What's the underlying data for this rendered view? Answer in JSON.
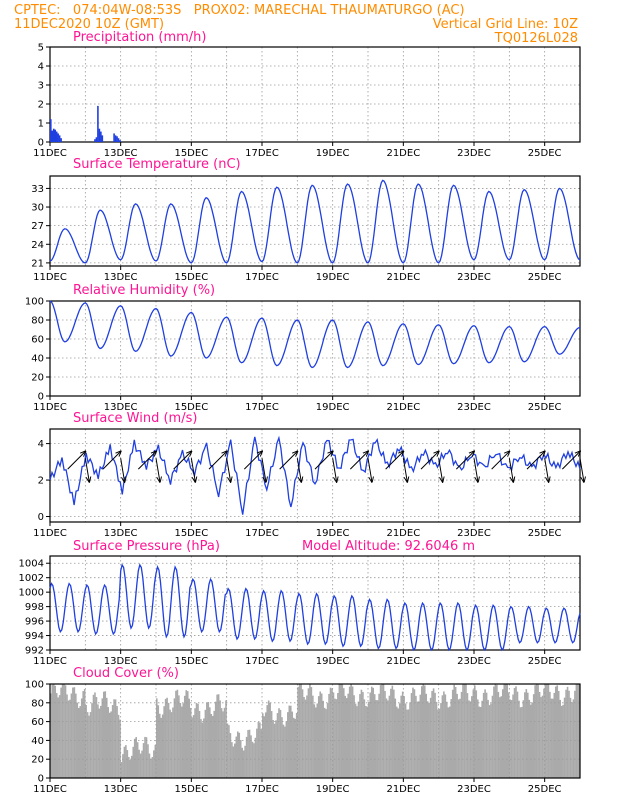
{
  "header": {
    "line1_left": "CPTEC:   074:04W-08:53S   PROX02: MARECHAL THAUMATURGO (AC)",
    "line2_left": "11DEC2020 10Z (GMT)",
    "line2_right": "Vertical Grid Line: 10Z",
    "line3_right": "TQ0126L028"
  },
  "colors": {
    "header": "#ff8c00",
    "panel_title": "#ff1493",
    "series": "#1f3fe0",
    "cloud": "#aaaaaa",
    "grid": "#9a9a9a"
  },
  "x_axis": {
    "ticks": [
      "11DEC",
      "13DEC",
      "15DEC",
      "17DEC",
      "19DEC",
      "21DEC",
      "23DEC",
      "25DEC"
    ],
    "start_label": "11DEC2020 10Z",
    "days_span": 15
  },
  "panels": [
    {
      "key": "precip",
      "title": "Precipitation (mm/h)"
    },
    {
      "key": "temp",
      "title": "Surface Temperature (nC)"
    },
    {
      "key": "rh",
      "title": "Relative Humidity (%)"
    },
    {
      "key": "wind",
      "title": "Surface Wind (m/s)"
    },
    {
      "key": "pres",
      "title": "Surface Pressure (hPa)",
      "extra": "Model Altitude: 92.6046 m"
    },
    {
      "key": "cloud",
      "title": "Cloud Cover (%)"
    }
  ],
  "chart_data": [
    {
      "type": "bar",
      "key": "precip",
      "title": "Precipitation (mm/h)",
      "ylim": [
        0,
        5
      ],
      "yticks": [
        0,
        1,
        2,
        3,
        4,
        5
      ],
      "x": [
        "2020-12-11T10Z",
        "2020-12-11T11Z",
        "2020-12-11T12Z",
        "2020-12-11T13Z",
        "2020-12-11T14Z",
        "2020-12-11T15Z",
        "2020-12-11T16Z",
        "2020-12-11T17Z",
        "2020-12-12T16Z",
        "2020-12-12T17Z",
        "2020-12-12T18Z",
        "2020-12-12T19Z",
        "2020-12-12T20Z",
        "2020-12-12T21Z",
        "2020-12-13T05Z",
        "2020-12-13T06Z",
        "2020-12-13T07Z",
        "2020-12-13T08Z",
        "2020-12-13T09Z"
      ],
      "values": [
        1.2,
        0.6,
        0.7,
        0.65,
        0.55,
        0.45,
        0.35,
        0.2,
        0.15,
        0.25,
        1.9,
        0.7,
        0.55,
        0.35,
        0.45,
        0.35,
        0.3,
        0.2,
        0.1
      ]
    },
    {
      "type": "line",
      "key": "temp",
      "title": "Surface Temperature (nC)",
      "ylim": [
        20.5,
        35
      ],
      "yticks": [
        21,
        24,
        27,
        30,
        33
      ],
      "daily_max": [
        26.5,
        29.5,
        30.5,
        30.5,
        31.5,
        32.5,
        33.2,
        33.5,
        33.7,
        34.3,
        33.7,
        33.5,
        32.5,
        32.8,
        33.0,
        31.8
      ],
      "daily_min": [
        21.3,
        21.0,
        21.5,
        21.3,
        21.0,
        21.0,
        21.2,
        21.0,
        21.0,
        21.0,
        21.0,
        21.0,
        21.5,
        21.5,
        21.5
      ]
    },
    {
      "type": "line",
      "key": "rh",
      "title": "Relative Humidity (%)",
      "ylim": [
        0,
        100
      ],
      "yticks": [
        0,
        20,
        40,
        60,
        80,
        100
      ],
      "daily_max": [
        100,
        98,
        95,
        92,
        88,
        83,
        82,
        80,
        80,
        78,
        76,
        75,
        74,
        73,
        73,
        72
      ],
      "daily_min": [
        57,
        50,
        47,
        42,
        40,
        35,
        32,
        30,
        30,
        32,
        33,
        34,
        35,
        36,
        44
      ]
    },
    {
      "type": "line",
      "key": "wind",
      "title": "Surface Wind (m/s)",
      "ylim": [
        -0.3,
        4.8
      ],
      "yticks": [
        0,
        2,
        4
      ],
      "speed": [
        2.0,
        3.2,
        0.7,
        3.4,
        2.2,
        3.8,
        1.4,
        4.0,
        2.8,
        3.7,
        2.0,
        3.4,
        2.5,
        3.8,
        1.3,
        4.0,
        0.3,
        4.2,
        1.6,
        4.2,
        0.6,
        4.0,
        1.8,
        4.2,
        2.6,
        4.3,
        2.4,
        4.2,
        2.8,
        3.8,
        2.5,
        3.6,
        2.7,
        3.7,
        2.5,
        3.5,
        2.6,
        3.6,
        2.5,
        3.4,
        2.6,
        3.5,
        2.6,
        3.6,
        2.6
      ]
    },
    {
      "type": "line",
      "key": "pres",
      "title": "Surface Pressure (hPa)",
      "extra": "Model Altitude: 92.6046 m",
      "ylim": [
        992,
        1005
      ],
      "yticks": [
        992,
        994,
        996,
        998,
        1000,
        1002,
        1004
      ],
      "daily_max": [
        1001.2,
        1001.0,
        1003.8,
        1003.5,
        1001.8,
        1000.5,
        1000.2,
        999.8,
        999.5,
        999.0,
        998.5,
        998.5,
        998.2,
        998.0,
        997.8,
        997.5
      ],
      "daily_min": [
        994.5,
        994.2,
        995.0,
        993.8,
        994.5,
        993.5,
        993.2,
        992.8,
        992.5,
        992.2,
        992.0,
        992.0,
        992.0,
        993.0,
        993.0
      ]
    },
    {
      "type": "bar",
      "key": "cloud",
      "title": "Cloud Cover (%)",
      "ylim": [
        0,
        100
      ],
      "yticks": [
        0,
        20,
        40,
        60,
        80,
        100
      ],
      "daily_mean": [
        90,
        78,
        30,
        80,
        75,
        45,
        70,
        88,
        90,
        88,
        86,
        88,
        90,
        90,
        92,
        90
      ]
    }
  ]
}
